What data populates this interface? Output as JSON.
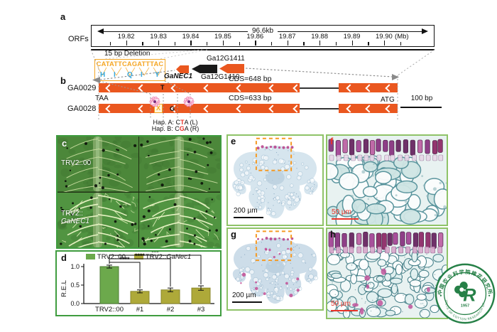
{
  "figure": {
    "panels": {
      "a": {
        "label": "a",
        "track_label": "ORFs",
        "span_label": "96.6kb",
        "ticks": [
          "19.82",
          "19.83",
          "19.84",
          "19.85",
          "19.86",
          "19.87",
          "19.88",
          "19.89",
          "19.90"
        ],
        "unit": "(Mb)"
      },
      "b": {
        "label": "b",
        "deletion_label": "15 bp Deletion",
        "deletion_sequence": "CATATTCAGATTTAC",
        "amino_acids": [
          "H",
          "I",
          "Q",
          "I",
          "Y"
        ],
        "genes": [
          {
            "name": "GaNEC1"
          },
          {
            "name": "Ga12G1410"
          },
          {
            "name": "Ga12G1411"
          }
        ],
        "rows": [
          {
            "name": "GA0029",
            "cds_label": "CDS=648 bp",
            "variant": "T"
          },
          {
            "name": "GA0028",
            "cds_label": "CDS=633 bp",
            "variant": "G"
          }
        ],
        "stop_codon": "TAA",
        "start_codon": "ATG",
        "deletion_mark": "X",
        "scale_label": "100 bp",
        "hapA_parts": [
          "Hap. A: C",
          "T",
          "A (L)"
        ],
        "hapB_parts": [
          "Hap. B: C",
          "G",
          "A (R)"
        ]
      },
      "c": {
        "label": "c",
        "top_label": "TRV2::00",
        "bottom_label_line1": "TRV2::",
        "bottom_label_line2": "GaNEC1"
      },
      "d": {
        "label": "d"
      },
      "e": {
        "label": "e",
        "scale_label": "200 µm"
      },
      "f": {
        "label": "f",
        "scale_label": "50 µm"
      },
      "g": {
        "label": "g",
        "scale_label": "200 µm"
      },
      "h": {
        "label": "h",
        "scale_label": "50 µm"
      }
    }
  },
  "chart_data": {
    "type": "bar",
    "title": "",
    "ylabel": "R.E.L",
    "categories": [
      "TRV2::00",
      "#1",
      "#2",
      "#3"
    ],
    "values": [
      1.0,
      0.33,
      0.37,
      0.42
    ],
    "errors": [
      0.04,
      0.04,
      0.05,
      0.06
    ],
    "yticks": [
      0.0,
      0.5,
      1.0
    ],
    "ylim": [
      0,
      1.15
    ],
    "legend": [
      {
        "label": "TRV2::00",
        "color": "#6CA94C"
      },
      {
        "label_prefix": "TRV2::",
        "label_gene": "GaNec1",
        "color": "#AEA939"
      }
    ],
    "bar_colors": [
      "#6CA94C",
      "#AEA939",
      "#AEA939",
      "#AEA939"
    ],
    "significance": [
      {
        "from": 0,
        "to": 1,
        "label": "****"
      },
      {
        "from": 0,
        "to": 2,
        "label": "****"
      },
      {
        "from": 0,
        "to": 3,
        "label": "***"
      }
    ]
  },
  "logo": {
    "arc_top": "中国农业科学院棉花研究所",
    "arc_bottom": "INSTITUTE OF COTTON RESEARCH OF CAAS",
    "year": "1957"
  },
  "colors": {
    "gene_orange": "#EA571F",
    "annotation_orange": "#F5A623",
    "amino_blue": "#36A9E1",
    "panel_green": "#3F9C3F",
    "micro_border_green": "#8FC368",
    "bar_green": "#6CA94C",
    "bar_olive": "#AEA939",
    "highlight_red": "#E8342A",
    "logo_green": "#1B7A3E"
  }
}
